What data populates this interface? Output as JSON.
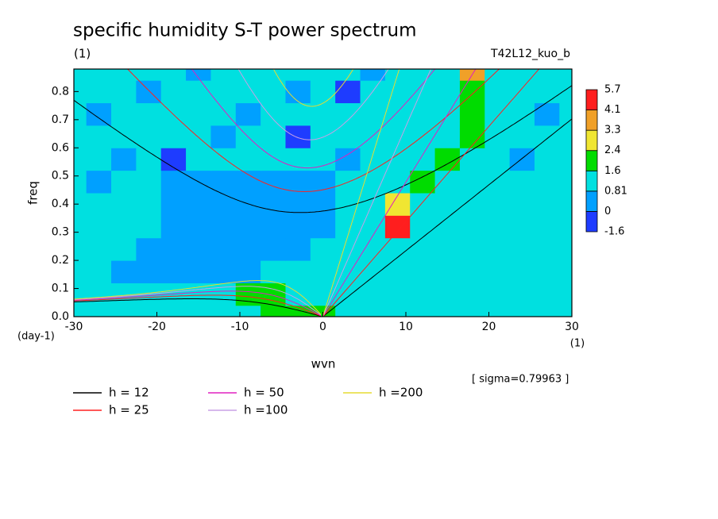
{
  "chart_data": {
    "type": "contour",
    "title": "specific humidity S-T power spectrum",
    "subtitle": "(1)",
    "run_label": "T42L12_kuo_b",
    "x_label": "wvn",
    "y_label": "freq",
    "x_unit": "(1)",
    "y_unit": "(day-1)",
    "note": "[ sigma=0.79963 ]",
    "xlim": [
      -30,
      30
    ],
    "ylim": [
      0,
      0.88
    ],
    "xticks": [
      -30,
      -20,
      -10,
      0,
      10,
      20,
      30
    ],
    "yticks": [
      {
        "value": 0,
        "label": "0.0"
      },
      0.1,
      0.2,
      0.3,
      0.4,
      0.5,
      0.6,
      0.7,
      0.8
    ],
    "levels": [
      -1.6,
      0,
      0.81,
      1.6,
      2.4,
      3.3,
      4.1,
      5.7
    ],
    "level_colors": [
      "#1e3cff",
      "#00a0ff",
      "#00e0e0",
      "#00dc00",
      "#f0e632",
      "#f0a028",
      "#ff1e1e"
    ],
    "x": [
      -30,
      -27,
      -24,
      -21,
      -18,
      -15,
      -12,
      -9,
      -6,
      -3,
      0,
      3,
      6,
      9,
      12,
      15,
      18,
      21,
      24,
      27,
      30
    ],
    "y": [
      0,
      0.08,
      0.16,
      0.24,
      0.32,
      0.4,
      0.48,
      0.56,
      0.64,
      0.72,
      0.8,
      0.88
    ],
    "z": [
      [
        1.1,
        1.1,
        1.2,
        1.2,
        1.2,
        1.3,
        1.3,
        1.4,
        1.8,
        2.0,
        1.8,
        1.2,
        1.0,
        1.0,
        1.0,
        1.0,
        1.0,
        1.0,
        1.0,
        1.0,
        1.0
      ],
      [
        1.0,
        1.0,
        1.0,
        0.9,
        0.9,
        1.0,
        1.0,
        1.7,
        1.8,
        1.2,
        1.0,
        1.0,
        1.0,
        1.0,
        1.0,
        0.9,
        1.0,
        1.0,
        1.0,
        1.0,
        1.0
      ],
      [
        1.0,
        0.9,
        0.7,
        0.6,
        0.6,
        0.5,
        0.6,
        0.7,
        0.9,
        1.0,
        1.0,
        1.0,
        1.0,
        1.0,
        1.0,
        1.0,
        1.0,
        1.0,
        0.9,
        1.0,
        1.0
      ],
      [
        1.0,
        1.0,
        0.9,
        0.7,
        0.5,
        0.4,
        0.4,
        0.5,
        0.6,
        0.7,
        0.9,
        1.0,
        1.0,
        1.0,
        1.0,
        1.0,
        1.0,
        1.0,
        1.0,
        1.0,
        1.0
      ],
      [
        1.0,
        1.0,
        1.0,
        0.9,
        0.6,
        0.5,
        0.4,
        0.3,
        0.4,
        0.5,
        0.6,
        0.9,
        1.0,
        4.5,
        1.0,
        1.0,
        1.0,
        1.0,
        1.0,
        1.0,
        1.0
      ],
      [
        1.0,
        1.0,
        1.0,
        1.0,
        0.7,
        0.6,
        0.5,
        0.4,
        0.4,
        0.4,
        0.6,
        0.9,
        1.0,
        2.5,
        1.0,
        1.0,
        1.0,
        1.0,
        1.0,
        1.0,
        1.0
      ],
      [
        1.0,
        0.5,
        1.0,
        0.9,
        0.8,
        0.5,
        0.5,
        0.6,
        0.5,
        0.6,
        0.8,
        1.0,
        1.0,
        1.0,
        2.0,
        1.0,
        1.0,
        1.0,
        1.0,
        1.0,
        1.0
      ],
      [
        1.0,
        1.0,
        0.5,
        1.0,
        -0.2,
        1.0,
        1.0,
        0.9,
        1.0,
        1.0,
        1.0,
        0.5,
        1.0,
        1.0,
        1.0,
        1.8,
        1.0,
        1.0,
        0.5,
        1.0,
        1.0
      ],
      [
        1.0,
        1.0,
        1.0,
        1.0,
        1.0,
        1.0,
        0.5,
        1.0,
        1.0,
        -0.2,
        1.0,
        1.0,
        1.0,
        1.0,
        1.0,
        1.0,
        1.8,
        1.0,
        1.0,
        1.0,
        1.0
      ],
      [
        1.0,
        0.5,
        1.0,
        1.0,
        1.0,
        1.0,
        1.0,
        0.5,
        1.0,
        1.0,
        1.0,
        1.0,
        1.0,
        1.0,
        1.0,
        1.0,
        1.7,
        1.0,
        1.0,
        0.5,
        1.0
      ],
      [
        1.0,
        1.0,
        1.0,
        0.5,
        1.0,
        1.0,
        1.0,
        1.0,
        1.0,
        0.5,
        1.0,
        -0.2,
        1.0,
        1.0,
        1.0,
        1.0,
        1.8,
        1.0,
        1.0,
        1.0,
        1.0
      ],
      [
        1.0,
        1.0,
        1.0,
        1.0,
        1.0,
        0.5,
        1.0,
        1.0,
        1.0,
        1.0,
        1.0,
        1.0,
        0.5,
        1.0,
        1.0,
        1.0,
        3.5,
        1.0,
        1.0,
        1.0,
        1.0
      ]
    ],
    "series": [
      {
        "name": "h = 12",
        "color": "#000000",
        "h": 12
      },
      {
        "name": "h = 25",
        "color": "#ff2020",
        "h": 25
      },
      {
        "name": "h = 50",
        "color": "#e020c0",
        "h": 50
      },
      {
        "name": "h =100",
        "color": "#c8a0e6",
        "h": 100
      },
      {
        "name": "h =200",
        "color": "#e6dc32",
        "h": 200
      }
    ]
  }
}
